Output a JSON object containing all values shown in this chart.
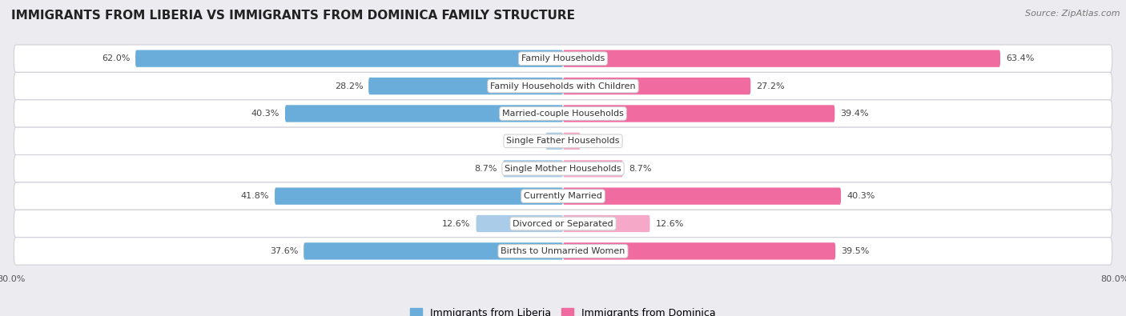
{
  "title": "IMMIGRANTS FROM LIBERIA VS IMMIGRANTS FROM DOMINICA FAMILY STRUCTURE",
  "source": "Source: ZipAtlas.com",
  "categories": [
    "Family Households",
    "Family Households with Children",
    "Married-couple Households",
    "Single Father Households",
    "Single Mother Households",
    "Currently Married",
    "Divorced or Separated",
    "Births to Unmarried Women"
  ],
  "liberia_values": [
    62.0,
    28.2,
    40.3,
    2.5,
    8.7,
    41.8,
    12.6,
    37.6
  ],
  "dominica_values": [
    63.4,
    27.2,
    39.4,
    2.5,
    8.7,
    40.3,
    12.6,
    39.5
  ],
  "liberia_color_large": "#6aadda",
  "liberia_color_small": "#aacce8",
  "dominica_color_large": "#f06ba0",
  "dominica_color_small": "#f5a8c8",
  "axis_limit": 80.0,
  "background_color": "#ebebf0",
  "row_bg_color": "#ffffff",
  "row_border_color": "#d0d0d8",
  "bar_height": 0.62,
  "large_threshold": 15.0,
  "legend_liberia": "Immigrants from Liberia",
  "legend_dominica": "Immigrants from Dominica",
  "title_fontsize": 11,
  "label_fontsize": 8,
  "cat_fontsize": 8,
  "source_fontsize": 8
}
